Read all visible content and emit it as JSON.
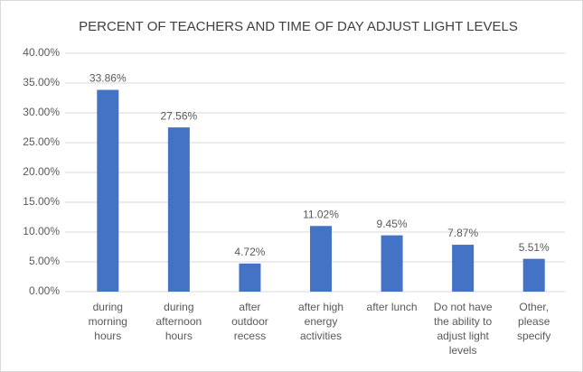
{
  "chart_data": {
    "type": "bar",
    "title": "PERCENT OF TEACHERS AND TIME OF DAY ADJUST LIGHT LEVELS",
    "categories": [
      "during morning hours",
      "during afternoon hours",
      "after outdoor recess",
      "after high energy activities",
      "after lunch",
      "Do not have the ability to adjust light levels",
      "Other, please specify"
    ],
    "values": [
      33.86,
      27.56,
      4.72,
      11.02,
      9.45,
      7.87,
      5.51
    ],
    "value_labels": [
      "33.86%",
      "27.56%",
      "4.72%",
      "11.02%",
      "9.45%",
      "7.87%",
      "5.51%"
    ],
    "color": "#4472c4",
    "ylim": [
      0,
      40
    ],
    "yticks": [
      {
        "value": 0,
        "label": "0.00%"
      },
      {
        "value": 5,
        "label": "5.00%"
      },
      {
        "value": 10,
        "label": "10.00%"
      },
      {
        "value": 15,
        "label": "15.00%"
      },
      {
        "value": 20,
        "label": "20.00%"
      },
      {
        "value": 25,
        "label": "25.00%"
      },
      {
        "value": 30,
        "label": "30.00%"
      },
      {
        "value": 35,
        "label": "35.00%"
      },
      {
        "value": 40,
        "label": "40.00%"
      }
    ],
    "grid": true
  }
}
